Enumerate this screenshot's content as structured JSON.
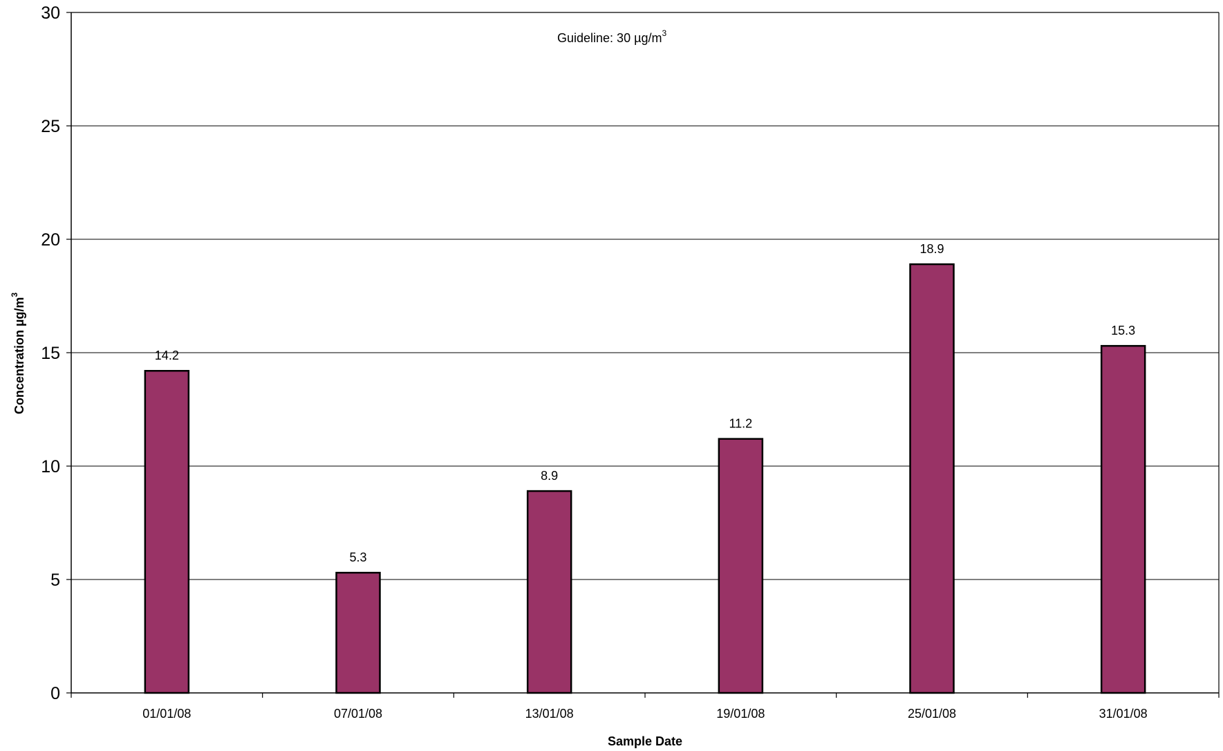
{
  "chart_data": {
    "type": "bar",
    "categories": [
      "01/01/08",
      "07/01/08",
      "13/01/08",
      "19/01/08",
      "25/01/08",
      "31/01/08"
    ],
    "values": [
      14.2,
      5.3,
      8.9,
      11.2,
      18.9,
      15.3
    ],
    "data_labels": [
      "14.2",
      "5.3",
      "8.9",
      "11.2",
      "18.9",
      "15.3"
    ],
    "xlabel": "Sample Date",
    "ylabel": {
      "text": "Concentration µg/m",
      "sup": "3"
    },
    "annotation": {
      "text": "Guideline: 30 µg/m",
      "sup": "3"
    },
    "ylim": [
      0,
      30
    ],
    "yticks": [
      0,
      5,
      10,
      15,
      20,
      25,
      30
    ],
    "grid": true,
    "bar_color": "#993366",
    "legend": "none"
  }
}
